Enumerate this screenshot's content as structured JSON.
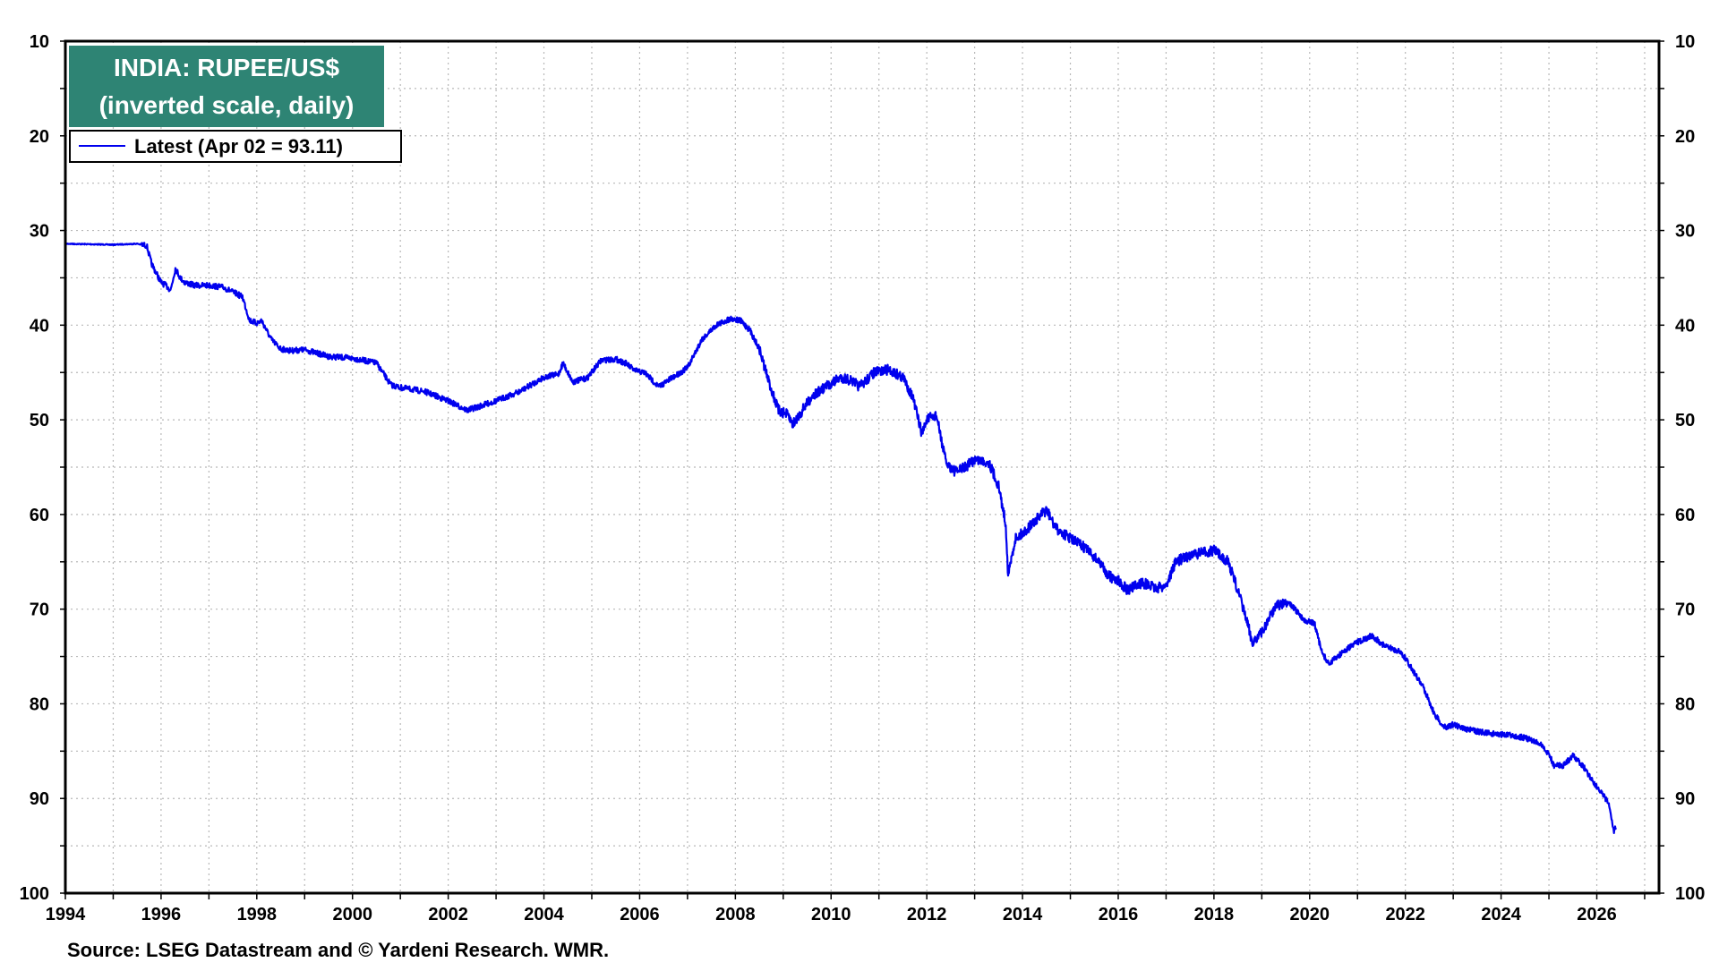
{
  "chart_data": {
    "type": "line",
    "title": "INDIA: RUPEE/US$",
    "subtitle": "(inverted scale, daily)",
    "source": "Source: LSEG Datastream and © Yardeni Research. WMR.",
    "legend": [
      {
        "label": "Latest (Apr 02 = 93.11)",
        "color": "#0000ee"
      }
    ],
    "legend_placement": "top-left",
    "title_box_color": "#2e8474",
    "line_color": "#0000ee",
    "grid": true,
    "y_inverted": true,
    "xlim": [
      1994,
      2027.3
    ],
    "ylim": [
      10,
      100
    ],
    "x_ticks": [
      "1994",
      "1996",
      "1998",
      "2000",
      "2002",
      "2004",
      "2006",
      "2008",
      "2010",
      "2012",
      "2014",
      "2016",
      "2018",
      "2020",
      "2022",
      "2024",
      "2026"
    ],
    "y_ticks": [
      "10",
      "20",
      "30",
      "40",
      "50",
      "60",
      "70",
      "80",
      "90",
      "100"
    ],
    "series": [
      {
        "name": "Latest (Apr 02 = 93.11)",
        "x": [
          1994.0,
          1995.0,
          1995.5,
          1995.7,
          1995.8,
          1995.9,
          1996.0,
          1996.1,
          1996.2,
          1996.3,
          1996.4,
          1996.5,
          1996.7,
          1997.0,
          1997.3,
          1997.7,
          1997.85,
          1998.0,
          1998.1,
          1998.3,
          1998.5,
          1998.7,
          1999.0,
          1999.5,
          2000.0,
          2000.5,
          2000.8,
          2001.0,
          2001.5,
          2002.0,
          2002.4,
          2002.7,
          2003.0,
          2003.5,
          2004.0,
          2004.3,
          2004.4,
          2004.6,
          2004.9,
          2005.2,
          2005.5,
          2005.7,
          2005.9,
          2006.1,
          2006.4,
          2006.7,
          2007.0,
          2007.3,
          2007.6,
          2007.9,
          2008.1,
          2008.3,
          2008.5,
          2008.7,
          2008.9,
          2009.1,
          2009.2,
          2009.4,
          2009.6,
          2009.9,
          2010.2,
          2010.4,
          2010.6,
          2010.9,
          2011.2,
          2011.5,
          2011.7,
          2011.9,
          2012.0,
          2012.2,
          2012.4,
          2012.6,
          2012.8,
          2013.0,
          2013.3,
          2013.5,
          2013.65,
          2013.7,
          2013.85,
          2014.0,
          2014.3,
          2014.5,
          2014.7,
          2015.0,
          2015.3,
          2015.6,
          2015.8,
          2016.0,
          2016.2,
          2016.5,
          2016.8,
          2017.0,
          2017.2,
          2017.5,
          2017.8,
          2018.0,
          2018.3,
          2018.5,
          2018.7,
          2018.8,
          2019.0,
          2019.3,
          2019.6,
          2019.9,
          2020.1,
          2020.25,
          2020.4,
          2020.7,
          2021.0,
          2021.3,
          2021.6,
          2021.9,
          2022.1,
          2022.4,
          2022.6,
          2022.8,
          2023.0,
          2023.3,
          2023.6,
          2023.9,
          2024.2,
          2024.5,
          2024.8,
          2025.0,
          2025.1,
          2025.3,
          2025.5,
          2025.7,
          2025.9,
          2026.1,
          2026.25
        ],
        "values": [
          31.4,
          31.5,
          31.4,
          31.6,
          33.5,
          34.5,
          35.5,
          35.8,
          36.3,
          34.0,
          35.0,
          35.5,
          35.8,
          35.8,
          36.0,
          37.0,
          39.5,
          39.8,
          39.5,
          41.5,
          42.5,
          42.7,
          42.6,
          43.3,
          43.5,
          44.0,
          46.3,
          46.6,
          47.0,
          48.0,
          49.0,
          48.5,
          48.0,
          47.0,
          45.5,
          45.2,
          44.0,
          46.0,
          45.6,
          43.7,
          43.6,
          44.0,
          44.8,
          45.0,
          46.5,
          45.5,
          44.5,
          41.5,
          40.0,
          39.3,
          39.5,
          40.5,
          42.5,
          46.0,
          49.0,
          49.5,
          50.5,
          49.0,
          47.5,
          46.5,
          45.5,
          45.8,
          46.5,
          45.0,
          44.7,
          45.5,
          47.5,
          51.5,
          50.0,
          49.5,
          54.5,
          55.5,
          55.0,
          54.2,
          54.5,
          57.0,
          61.0,
          66.5,
          62.5,
          62.0,
          60.5,
          59.5,
          61.5,
          62.5,
          63.5,
          65.0,
          66.5,
          67.0,
          68.0,
          67.2,
          67.8,
          67.5,
          65.0,
          64.3,
          64.0,
          63.8,
          65.0,
          68.0,
          71.5,
          73.5,
          72.5,
          69.5,
          69.5,
          71.2,
          71.5,
          74.5,
          75.8,
          74.5,
          73.5,
          72.8,
          74.0,
          74.5,
          76.0,
          78.5,
          81.0,
          82.5,
          82.2,
          82.7,
          83.0,
          83.2,
          83.3,
          83.6,
          84.2,
          85.3,
          86.5,
          86.5,
          85.5,
          86.5,
          88.0,
          89.5,
          90.5
        ]
      },
      {
        "name": "",
        "x": [
          2026.25,
          2026.3,
          2026.35,
          2026.4
        ],
        "values": [
          90.5,
          92.0,
          93.5,
          93.11
        ]
      }
    ]
  }
}
